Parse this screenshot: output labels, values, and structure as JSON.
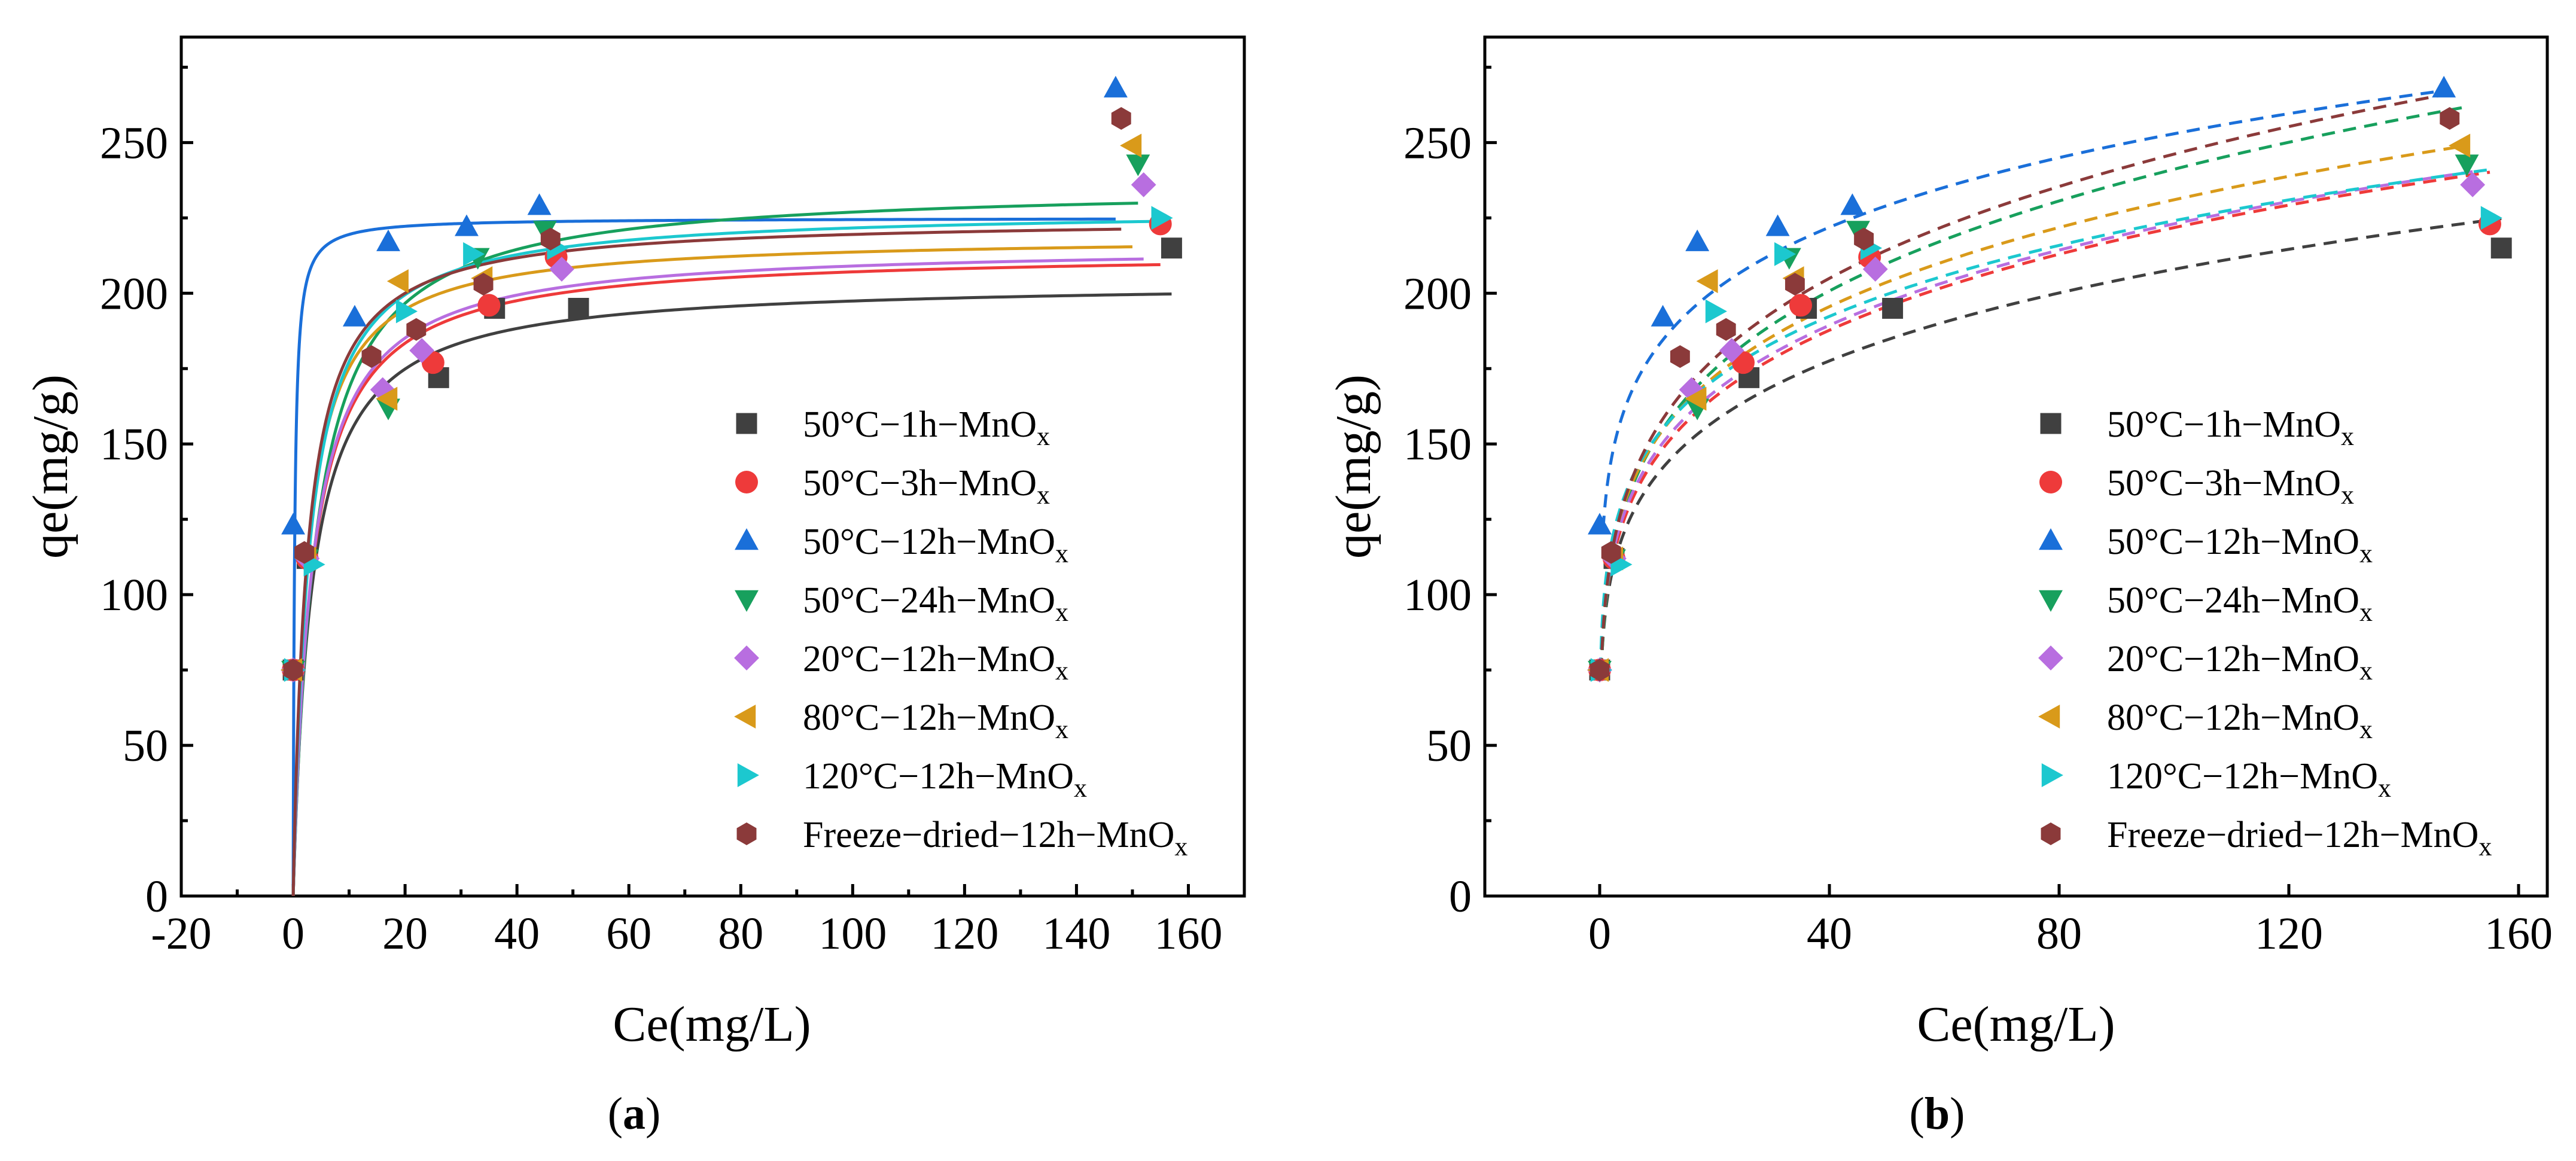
{
  "chart_data": [
    {
      "panel_label": "a",
      "type": "scatter",
      "fit": "solid",
      "xlabel": "Ce(mg/L)",
      "ylabel": "qe(mg/g)",
      "xlim": [
        -20,
        170
      ],
      "ylim": [
        0,
        285
      ],
      "xticks": [
        -20,
        0,
        20,
        40,
        60,
        80,
        100,
        120,
        140,
        160
      ],
      "yticks": [
        0,
        50,
        100,
        150,
        200,
        250
      ],
      "series": [
        {
          "name": "50°C−1h−MnOx",
          "label_main": "50°C−1h−MnO",
          "label_sub": "x",
          "color": "#404040",
          "marker": "square",
          "x": [
            0,
            2.5,
            26,
            36,
            51,
            157
          ],
          "y": [
            75,
            112,
            172,
            195,
            195,
            215
          ],
          "fit": {
            "qm": 204,
            "K": 0.3
          }
        },
        {
          "name": "50°C−3h−MnOx",
          "label_main": "50°C−3h−MnO",
          "label_sub": "x",
          "color": "#ee3a3a",
          "marker": "circle",
          "x": [
            0,
            2.5,
            25,
            35,
            47,
            155
          ],
          "y": [
            75,
            112,
            177,
            196,
            212,
            223
          ],
          "fit": {
            "qm": 214,
            "K": 0.3
          }
        },
        {
          "name": "50°C−12h−MnOx",
          "label_main": "50°C−12h−MnO",
          "label_sub": "x",
          "color": "#1a6fd9",
          "marker": "triangle-up",
          "x": [
            0,
            11,
            17,
            31,
            44,
            147
          ],
          "y": [
            123,
            192,
            217,
            222,
            229,
            268
          ],
          "fit": {
            "qm": 225,
            "K": 4.0
          }
        },
        {
          "name": "50°C−24h−MnOx",
          "label_main": "50°C−24h−MnO",
          "label_sub": "x",
          "color": "#17a05d",
          "marker": "triangle-down",
          "x": [
            0,
            2.5,
            17,
            33,
            45,
            151
          ],
          "y": [
            75,
            112,
            162,
            212,
            221,
            243
          ],
          "fit": {
            "qm": 236,
            "K": 0.25
          }
        },
        {
          "name": "20°C−12h−MnOx",
          "label_main": "20°C−12h−MnO",
          "label_sub": "x",
          "color": "#b86ee0",
          "marker": "diamond",
          "x": [
            0,
            2.5,
            16,
            23,
            48,
            152
          ],
          "y": [
            75,
            112,
            168,
            181,
            208,
            236
          ],
          "fit": {
            "qm": 216,
            "K": 0.3
          }
        },
        {
          "name": "80°C−12h−MnOx",
          "label_main": "80°C−12h−MnO",
          "label_sub": "x",
          "color": "#d99a1a",
          "marker": "triangle-left",
          "x": [
            0,
            2.5,
            17,
            19,
            34,
            150
          ],
          "y": [
            75,
            112,
            165,
            204,
            205,
            249
          ],
          "fit": {
            "qm": 219,
            "K": 0.4
          }
        },
        {
          "name": "120°C−12h−MnOx",
          "label_main": "120°C−12h−MnO",
          "label_sub": "x",
          "color": "#1cc8cf",
          "marker": "triangle-right",
          "x": [
            0,
            3.5,
            20,
            32,
            47,
            155
          ],
          "y": [
            75,
            110,
            194,
            213,
            215,
            225
          ],
          "fit": {
            "qm": 228,
            "K": 0.35
          }
        },
        {
          "name": "Freeze−dried−12h−MnOx",
          "label_main": "Freeze−dried−12h−MnO",
          "label_sub": "x",
          "color": "#8b3a3a",
          "marker": "hexagon",
          "x": [
            0,
            2,
            14,
            22,
            34,
            46,
            148
          ],
          "y": [
            75,
            114,
            179,
            188,
            203,
            218,
            258
          ],
          "fit": {
            "qm": 225,
            "K": 0.4
          }
        }
      ]
    },
    {
      "panel_label": "b",
      "type": "scatter",
      "fit": "dashed",
      "xlabel": "Ce(mg/L)",
      "ylabel": "qe(mg/g)",
      "xlim": [
        -20,
        165
      ],
      "ylim": [
        0,
        285
      ],
      "xticks": [
        0,
        40,
        80,
        120,
        160
      ],
      "yticks": [
        0,
        50,
        100,
        150,
        200,
        250
      ],
      "series": [
        {
          "name": "50°C−1h−MnOx",
          "label_main": "50°C−1h−MnO",
          "label_sub": "x",
          "color": "#404040",
          "marker": "square",
          "x": [
            0,
            2.5,
            26,
            36,
            51,
            157
          ],
          "y": [
            75,
            112,
            172,
            195,
            195,
            215
          ],
          "fit": {
            "KF": 94,
            "n": 5.8
          }
        },
        {
          "name": "50°C−3h−MnOx",
          "label_main": "50°C−3h−MnO",
          "label_sub": "x",
          "color": "#ee3a3a",
          "marker": "circle",
          "x": [
            0,
            2.5,
            25,
            35,
            47,
            155
          ],
          "y": [
            75,
            112,
            177,
            196,
            212,
            223
          ],
          "fit": {
            "KF": 96,
            "n": 5.5
          }
        },
        {
          "name": "50°C−12h−MnOx",
          "label_main": "50°C−12h−MnO",
          "label_sub": "x",
          "color": "#1a6fd9",
          "marker": "triangle-up",
          "x": [
            0,
            11,
            17,
            31,
            44,
            147
          ],
          "y": [
            123,
            192,
            217,
            222,
            229,
            268
          ],
          "fit": {
            "KF": 131,
            "n": 7.0
          }
        },
        {
          "name": "50°C−24h−MnOx",
          "label_main": "50°C−24h−MnO",
          "label_sub": "x",
          "color": "#17a05d",
          "marker": "triangle-down",
          "x": [
            0,
            2.5,
            17,
            33,
            45,
            151
          ],
          "y": [
            75,
            112,
            162,
            212,
            221,
            243
          ],
          "fit": {
            "KF": 96,
            "n": 5.0
          }
        },
        {
          "name": "20°C−12h−MnOx",
          "label_main": "20°C−12h−MnO",
          "label_sub": "x",
          "color": "#b86ee0",
          "marker": "diamond",
          "x": [
            0,
            2.5,
            16,
            23,
            48,
            152
          ],
          "y": [
            75,
            112,
            168,
            181,
            208,
            236
          ],
          "fit": {
            "KF": 98,
            "n": 5.6
          }
        },
        {
          "name": "80°C−12h−MnOx",
          "label_main": "80°C−12h−MnO",
          "label_sub": "x",
          "color": "#d99a1a",
          "marker": "triangle-left",
          "x": [
            0,
            2.5,
            17,
            19,
            34,
            150
          ],
          "y": [
            75,
            112,
            165,
            204,
            205,
            249
          ],
          "fit": {
            "KF": 100,
            "n": 5.5
          }
        },
        {
          "name": "120°C−12h−MnOx",
          "label_main": "120°C−12h−MnO",
          "label_sub": "x",
          "color": "#1cc8cf",
          "marker": "triangle-right",
          "x": [
            0,
            3.5,
            20,
            32,
            47,
            155
          ],
          "y": [
            75,
            110,
            194,
            213,
            215,
            225
          ],
          "fit": {
            "KF": 104,
            "n": 6.0
          }
        },
        {
          "name": "Freeze−dried−12h−MnOx",
          "label_main": "Freeze−dried−12h−MnO",
          "label_sub": "x",
          "color": "#8b3a3a",
          "marker": "hexagon",
          "x": [
            0,
            2,
            14,
            22,
            34,
            46,
            148
          ],
          "y": [
            75,
            114,
            179,
            188,
            203,
            218,
            258
          ],
          "fit": {
            "KF": 98,
            "n": 5.0
          }
        }
      ]
    }
  ]
}
